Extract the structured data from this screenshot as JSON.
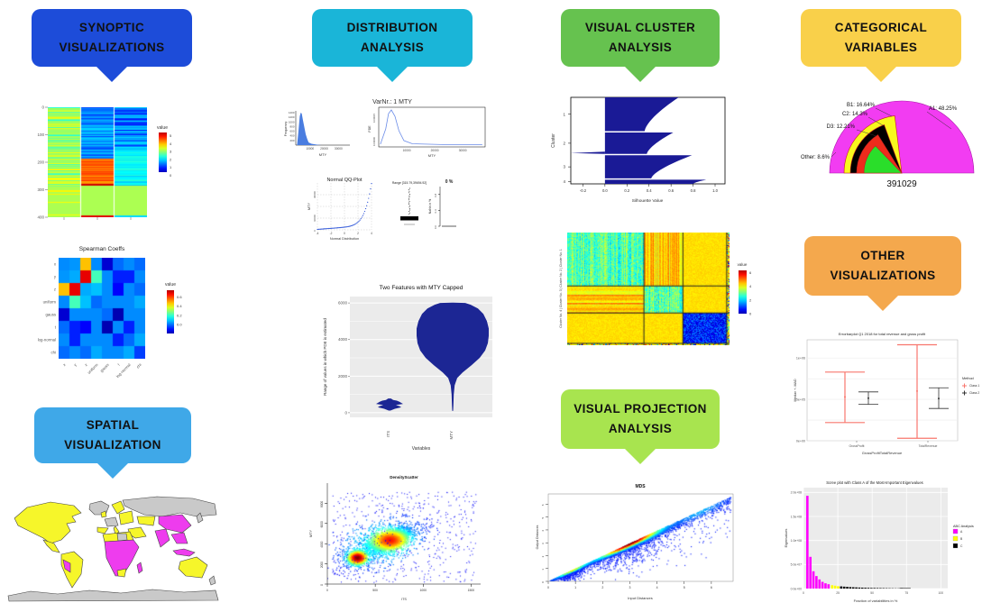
{
  "badges": {
    "synoptic": {
      "line1": "SYNOPTIC",
      "line2": "VISUALIZATIONS",
      "color": "#1d4cd9"
    },
    "distribution": {
      "line1": "DISTRIBUTION",
      "line2": "ANALYSIS",
      "color": "#1ab5d8"
    },
    "cluster": {
      "line1": "VISUAL CLUSTER",
      "line2": "ANALYSIS",
      "color": "#66c24f"
    },
    "categorical": {
      "line1": "CATEGORICAL",
      "line2": "VARIABLES",
      "color": "#f9d04a"
    },
    "spatial": {
      "line1": "SPATIAL",
      "line2": "VISUALIZATION",
      "color": "#3fa8e8"
    },
    "projection": {
      "line1": "VISUAL PROJECTION",
      "line2": "ANALYSIS",
      "color": "#a8e44f"
    },
    "other": {
      "line1": "OTHER",
      "line2": "VISUALIZATIONS",
      "color": "#f4a84d"
    }
  },
  "chart_data": [
    {
      "id": "pixelmatrix",
      "type": "heatmap",
      "y_ticks": [
        "0",
        "100",
        "200",
        "300",
        "400"
      ],
      "legend_title": "value",
      "legend_ticks": [
        "5",
        "4",
        "3",
        "2",
        "1",
        "0"
      ],
      "n_feature_columns": 3,
      "n_rows": 420
    },
    {
      "id": "spearman",
      "type": "heatmap",
      "title": "Spearman Coeffs",
      "labels": [
        "x",
        "y",
        "z",
        "uniform",
        "gauss",
        "t",
        "log-normal",
        "chi"
      ],
      "legend_title": "value",
      "legend_ticks": [
        "0.6",
        "0.4",
        "0.2",
        "0.0"
      ],
      "matrix": [
        [
          0.05,
          0.06,
          0.45,
          0.05,
          -0.12,
          0.02,
          0.05,
          0.02
        ],
        [
          0.06,
          0.08,
          0.65,
          0.22,
          0.05,
          -0.05,
          -0.05,
          0.05
        ],
        [
          0.45,
          0.65,
          0.08,
          0.1,
          0.05,
          -0.08,
          0.05,
          0.02
        ],
        [
          0.05,
          0.22,
          0.1,
          0.02,
          0.05,
          0.05,
          0.05,
          0.08
        ],
        [
          -0.12,
          0.05,
          0.05,
          0.05,
          0.02,
          -0.15,
          0.05,
          0.05
        ],
        [
          0.02,
          -0.05,
          -0.08,
          0.05,
          -0.15,
          0.05,
          -0.05,
          0.05
        ],
        [
          0.05,
          -0.05,
          0.05,
          0.05,
          0.05,
          -0.05,
          0.02,
          0.08
        ],
        [
          0.02,
          0.05,
          0.02,
          0.08,
          0.05,
          0.05,
          0.08,
          -0.02
        ]
      ]
    },
    {
      "id": "worldmap",
      "type": "map",
      "colors": {
        "land_a": "#f6f62a",
        "land_b": "#ee3cee",
        "land_none": "#c9c9c9",
        "border": "#444444",
        "ocean": "#ffffff"
      }
    },
    {
      "id": "varnr",
      "type": "panel",
      "title": "VarNr.: 1 MTY",
      "hist": {
        "ylabel": "Frequency",
        "xlabel": "MTY",
        "y_ticks": [
          "1400",
          "1200",
          "1000",
          "800",
          "600",
          "400",
          "200"
        ],
        "x_ticks": [
          "10000",
          "20000",
          "30000"
        ],
        "fill": "#4a7de0"
      },
      "pde": {
        "ylabel": "PDE",
        "xlabel": "MTY",
        "y_ticks": [
          "0.00015",
          "0.00000"
        ],
        "x_ticks": [
          "10000",
          "20000",
          "30000"
        ],
        "stroke": "#6b8ce8"
      },
      "qq": {
        "title": "Normal QQ-Plot",
        "ylabel": "MTY",
        "xlabel": "Normal Distribution",
        "x_ticks": [
          "-4",
          "-2",
          "0",
          "2",
          "4"
        ],
        "y_ticks": [
          "0",
          "10000",
          "30000"
        ],
        "stroke": "#2a52d8"
      },
      "box": {
        "title": "Range [315.79,39694.92]"
      },
      "nan": {
        "title": "0 %",
        "ylabel": "NaNs in %",
        "y_ticks": [
          "0.8",
          "0.4",
          "0.0"
        ]
      }
    },
    {
      "id": "violin",
      "type": "violin",
      "title": "Two Features with MTY Capped",
      "xlabel": "Variables",
      "ylabel": "Range of values in which PDE is estimated",
      "categories": [
        "ITS",
        "MTY"
      ],
      "y_ticks": [
        "6000",
        "4000",
        "2000",
        "0"
      ],
      "fill": "#1c2694",
      "profiles": {
        "ITS": [
          [
            120,
            1
          ],
          [
            220,
            6
          ],
          [
            300,
            13
          ],
          [
            360,
            11
          ],
          [
            420,
            7
          ],
          [
            480,
            15
          ],
          [
            540,
            13
          ],
          [
            600,
            11
          ],
          [
            660,
            8
          ],
          [
            700,
            4
          ],
          [
            780,
            1.5
          ]
        ],
        "MTY": [
          [
            6020,
            0.5
          ],
          [
            6000,
            14
          ],
          [
            5900,
            20
          ],
          [
            5700,
            28
          ],
          [
            5400,
            34
          ],
          [
            5000,
            38
          ],
          [
            4600,
            40
          ],
          [
            4200,
            40
          ],
          [
            3800,
            39
          ],
          [
            3400,
            36
          ],
          [
            3000,
            30
          ],
          [
            2600,
            21
          ],
          [
            2200,
            11
          ],
          [
            1900,
            5
          ],
          [
            1500,
            2.2
          ],
          [
            1000,
            1.2
          ],
          [
            400,
            0.8
          ],
          [
            100,
            0.5
          ]
        ]
      }
    },
    {
      "id": "densityscatter",
      "type": "scatter-density",
      "title": "DensityScatter",
      "xlabel": "ITS",
      "ylabel": "MTY",
      "x_ticks": [
        "0",
        "500",
        "1000",
        "1500"
      ],
      "y_ticks": [
        "0",
        "2000",
        "4000",
        "6000",
        "8000"
      ],
      "clusters": [
        {
          "cx": 310,
          "cy": 2650,
          "sx": 50,
          "sy": 330,
          "rho": 0.2,
          "n": 1500
        },
        {
          "cx": 650,
          "cy": 4400,
          "sx": 95,
          "sy": 520,
          "rho": 0.55,
          "n": 2800
        },
        {
          "cx": 560,
          "cy": 4100,
          "sx": 230,
          "sy": 1250,
          "rho": 0.5,
          "n": 1200
        }
      ],
      "noise_n": 500,
      "xlim": [
        0,
        1600
      ],
      "ylim": [
        0,
        10000
      ]
    },
    {
      "id": "silhouette",
      "type": "silhouette",
      "xlabel": "Silhouette Value",
      "ylabel": "Cluster",
      "x_ticks": [
        "-0.2",
        "0.0",
        "0.2",
        "0.4",
        "0.6",
        "0.8",
        "1.0"
      ],
      "cluster_ticks": [
        "1",
        "2",
        "3",
        "4"
      ],
      "fill": "#1a1a96",
      "clusters": [
        {
          "frac": 0.41,
          "smax": 0.67,
          "smin": 0.36,
          "neg": 0
        },
        {
          "frac": 0.26,
          "smax": 0.62,
          "smin": 0.38,
          "neg": -0.31
        },
        {
          "frac": 0.28,
          "smax": 0.79,
          "smin": 0.42,
          "neg": 0
        },
        {
          "frac": 0.05,
          "smax": 0.92,
          "smin": 0.8,
          "neg": 0
        }
      ]
    },
    {
      "id": "clusterheat",
      "type": "heatmap",
      "ylabel": "Cluster No. 4 | Cluster No. 3 | Cluster No. 2 | Cluster No. 1",
      "legend_title": "value",
      "legend_ticks": [
        "6",
        "4",
        "2",
        "0"
      ],
      "block_fractions": [
        0.47,
        0.24,
        0.27,
        0.02
      ]
    },
    {
      "id": "mds",
      "type": "scatter-density",
      "title": "MDS",
      "xlabel": "Input Distances",
      "ylabel": "Output Distances",
      "x_ticks": [
        "0",
        "1",
        "2",
        "3",
        "4",
        "5",
        "6"
      ],
      "y_ticks": [
        "0",
        "1",
        "2",
        "3",
        "4",
        "5",
        "6"
      ],
      "n_points": 6500
    },
    {
      "id": "fanpie",
      "type": "pie",
      "caption": "391029",
      "slices": [
        {
          "label": "A1: 48.25%",
          "value": 48.25,
          "color": "#f23cf2"
        },
        {
          "label": "B1: 16.64%",
          "value": 16.64,
          "color": "#f8f81e"
        },
        {
          "label": "C2: 14.3%",
          "value": 14.3,
          "color": "#000000"
        },
        {
          "label": "D3: 12.21%",
          "value": 12.21,
          "color": "#ee2c1c"
        },
        {
          "label": "Other: 8.6%",
          "value": 8.6,
          "color": "#2ade2a"
        }
      ]
    },
    {
      "id": "errorbar",
      "type": "errorbar",
      "title": "Errorbarplot Q1 2018 for total revenue and gross profit",
      "xlabel": "GrossProfitTotalRevenue",
      "ylabel": "Median +- MAD",
      "categories": [
        "GrossProfit",
        "TotalRevenue"
      ],
      "y_ticks": [
        "1e+06",
        "5e+05",
        "0e+00"
      ],
      "legend_title": "Method",
      "series": [
        {
          "name": "Class 1",
          "color": "#f8766d",
          "bars": [
            {
              "lo": 220000,
              "mid": 530000,
              "hi": 830000
            },
            {
              "lo": 30000,
              "mid": 600000,
              "hi": 1160000
            }
          ]
        },
        {
          "name": "Class 2",
          "color": "#333333",
          "bars": [
            {
              "lo": 440000,
              "mid": 515000,
              "hi": 590000
            },
            {
              "lo": 390000,
              "mid": 510000,
              "hi": 640000
            }
          ]
        }
      ],
      "ylim": [
        0,
        1220000
      ]
    },
    {
      "id": "scree",
      "type": "bar",
      "title": "Scree plot with Class A of the Most-Important Eigenvalues",
      "xlabel": "Fraction of variabilities in %",
      "ylabel": "Eigenvalues",
      "x_ticks": [
        "0",
        "25",
        "50",
        "75",
        "100"
      ],
      "y_ticks": [
        "2.0e+08",
        "1.5e+08",
        "1.0e+08",
        "5.0e+07",
        "0.0e+00"
      ],
      "legend_title": "ABC Analysis",
      "classes": [
        {
          "name": "A",
          "color": "#ff00ff"
        },
        {
          "name": "B",
          "color": "#ffff00"
        },
        {
          "name": "C",
          "color": "#000000"
        }
      ],
      "bars_millions": {
        "A": [
          193,
          66,
          36,
          26,
          19,
          14,
          11,
          9
        ],
        "B": [
          7,
          6,
          5
        ],
        "C": [
          4.5,
          4,
          3.5,
          3,
          2.7,
          2.4,
          2.1,
          1.9,
          1.7,
          1.5,
          1.3,
          1.2,
          1.1,
          1.0,
          0.9,
          0.8,
          0.7,
          0.6,
          0.5,
          0.45,
          0.4
        ]
      },
      "ylim": [
        0,
        210000000
      ]
    }
  ]
}
